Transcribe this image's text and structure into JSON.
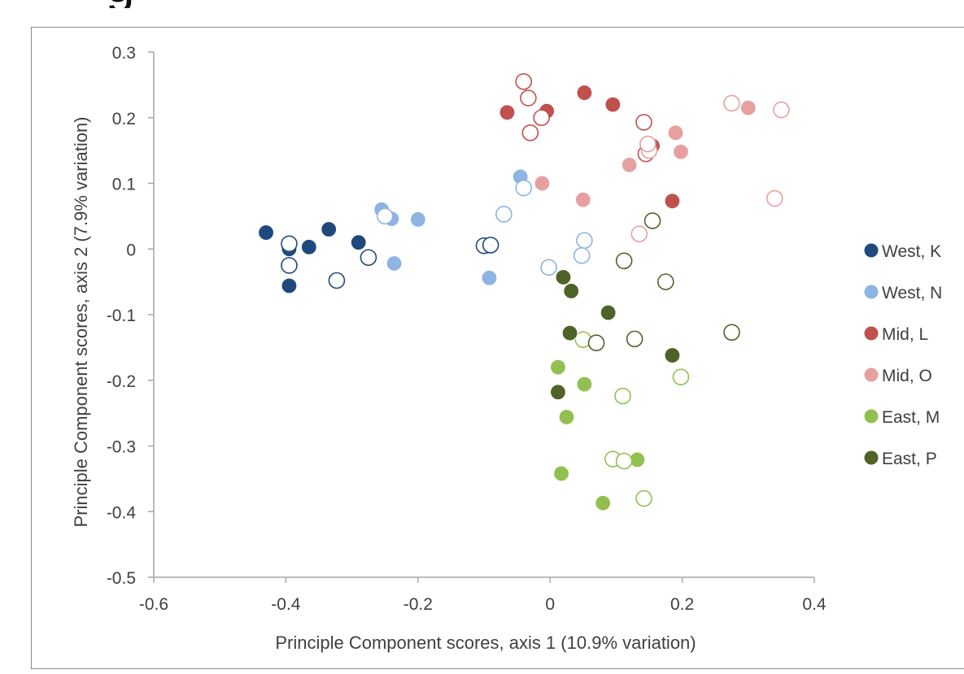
{
  "header_fragment": "g",
  "chart_data": {
    "type": "scatter",
    "title": "",
    "xlabel": "Principle Component scores, axis 1 (10.9% variation)",
    "ylabel": "Principle Component scores, axis 2 (7.9% variation)",
    "xlim": [
      -0.6,
      0.4
    ],
    "ylim": [
      -0.5,
      0.3
    ],
    "x_ticks": [
      "-0.6",
      "-0.4",
      "-0.2",
      "0",
      "0.2",
      "0.4"
    ],
    "y_ticks": [
      "0.3",
      "0.2",
      "0.1",
      "0",
      "-0.1",
      "-0.2",
      "-0.3",
      "-0.4",
      "-0.5"
    ],
    "grid": false,
    "legend_position": "right",
    "legend": [
      "West, K",
      "West, N",
      "Mid, L",
      "Mid, O",
      "East, M",
      "East, P"
    ],
    "series": [
      {
        "name": "West, K",
        "color": "#1f497d",
        "points": [
          [
            -0.43,
            0.025,
            "filled"
          ],
          [
            -0.395,
            0.0,
            "filled"
          ],
          [
            -0.365,
            0.003,
            "filled"
          ],
          [
            -0.335,
            0.03,
            "filled"
          ],
          [
            -0.29,
            0.01,
            "filled"
          ],
          [
            -0.395,
            -0.056,
            "filled"
          ],
          [
            -0.395,
            0.008,
            "hollow"
          ],
          [
            -0.395,
            -0.025,
            "hollow"
          ],
          [
            -0.275,
            -0.013,
            "hollow"
          ],
          [
            -0.323,
            -0.048,
            "hollow"
          ],
          [
            -0.1,
            0.005,
            "hollow"
          ],
          [
            -0.09,
            0.006,
            "hollow"
          ]
        ]
      },
      {
        "name": "West, N",
        "color": "#8db4e2",
        "points": [
          [
            -0.255,
            0.06,
            "filled"
          ],
          [
            -0.24,
            0.046,
            "filled"
          ],
          [
            -0.2,
            0.045,
            "filled"
          ],
          [
            -0.236,
            -0.022,
            "filled"
          ],
          [
            -0.092,
            -0.044,
            "filled"
          ],
          [
            -0.045,
            0.11,
            "filled"
          ],
          [
            -0.25,
            0.05,
            "hollow"
          ],
          [
            -0.04,
            0.093,
            "hollow"
          ],
          [
            -0.07,
            0.053,
            "hollow"
          ],
          [
            -0.002,
            -0.028,
            "hollow"
          ],
          [
            0.052,
            0.013,
            "hollow"
          ],
          [
            0.048,
            -0.01,
            "hollow"
          ]
        ]
      },
      {
        "name": "Mid, L",
        "color": "#c0504d",
        "points": [
          [
            -0.065,
            0.208,
            "filled"
          ],
          [
            -0.005,
            0.21,
            "filled"
          ],
          [
            0.052,
            0.238,
            "filled"
          ],
          [
            0.095,
            0.22,
            "filled"
          ],
          [
            0.155,
            0.157,
            "filled"
          ],
          [
            0.185,
            0.073,
            "filled"
          ],
          [
            -0.04,
            0.255,
            "hollow"
          ],
          [
            -0.033,
            0.23,
            "hollow"
          ],
          [
            -0.013,
            0.2,
            "hollow"
          ],
          [
            -0.03,
            0.177,
            "hollow"
          ],
          [
            0.142,
            0.193,
            "hollow"
          ],
          [
            0.145,
            0.145,
            "hollow"
          ]
        ]
      },
      {
        "name": "Mid, O",
        "color": "#e6a0a0",
        "points": [
          [
            -0.012,
            0.1,
            "filled"
          ],
          [
            0.05,
            0.075,
            "filled"
          ],
          [
            0.12,
            0.128,
            "filled"
          ],
          [
            0.19,
            0.177,
            "filled"
          ],
          [
            0.198,
            0.148,
            "filled"
          ],
          [
            0.3,
            0.215,
            "filled"
          ],
          [
            0.15,
            0.15,
            "hollow"
          ],
          [
            0.135,
            0.023,
            "hollow"
          ],
          [
            0.275,
            0.222,
            "hollow"
          ],
          [
            0.35,
            0.212,
            "hollow"
          ],
          [
            0.34,
            0.077,
            "hollow"
          ],
          [
            0.148,
            0.16,
            "hollow"
          ]
        ]
      },
      {
        "name": "East, M",
        "color": "#92c050",
        "points": [
          [
            0.012,
            -0.18,
            "filled"
          ],
          [
            0.052,
            -0.206,
            "filled"
          ],
          [
            0.025,
            -0.256,
            "filled"
          ],
          [
            0.017,
            -0.342,
            "filled"
          ],
          [
            0.08,
            -0.387,
            "filled"
          ],
          [
            0.132,
            -0.321,
            "filled"
          ],
          [
            0.11,
            -0.224,
            "hollow"
          ],
          [
            0.198,
            -0.195,
            "hollow"
          ],
          [
            0.095,
            -0.32,
            "hollow"
          ],
          [
            0.112,
            -0.323,
            "hollow"
          ],
          [
            0.142,
            -0.38,
            "hollow"
          ],
          [
            0.05,
            -0.138,
            "hollow"
          ]
        ]
      },
      {
        "name": "East, P",
        "color": "#4f6228",
        "points": [
          [
            0.02,
            -0.043,
            "filled"
          ],
          [
            0.032,
            -0.064,
            "filled"
          ],
          [
            0.088,
            -0.097,
            "filled"
          ],
          [
            0.03,
            -0.128,
            "filled"
          ],
          [
            0.185,
            -0.162,
            "filled"
          ],
          [
            0.012,
            -0.218,
            "filled"
          ],
          [
            0.112,
            -0.018,
            "hollow"
          ],
          [
            0.155,
            0.043,
            "hollow"
          ],
          [
            0.175,
            -0.05,
            "hollow"
          ],
          [
            0.07,
            -0.143,
            "hollow"
          ],
          [
            0.128,
            -0.137,
            "hollow"
          ],
          [
            0.275,
            -0.127,
            "hollow"
          ]
        ]
      }
    ]
  }
}
